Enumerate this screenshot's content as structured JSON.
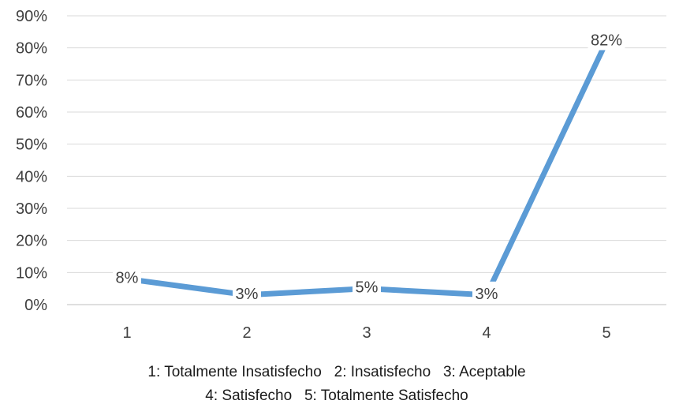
{
  "chart_data": {
    "type": "line",
    "categories": [
      "1",
      "2",
      "3",
      "4",
      "5"
    ],
    "series": [
      {
        "values": [
          8,
          3,
          5,
          3,
          82
        ],
        "labels": [
          "8%",
          "3%",
          "5%",
          "3%",
          "82%"
        ],
        "color": "#5B9BD5"
      }
    ],
    "y_ticks": [
      "0%",
      "10%",
      "20%",
      "30%",
      "40%",
      "50%",
      "60%",
      "70%",
      "80%",
      "90%"
    ],
    "ylim": [
      0,
      90
    ],
    "grid": true,
    "legend_lines": [
      "1: Totalmente Insatisfecho   2: Insatisfecho   3: Aceptable",
      "4: Satisfecho   5: Totalmente Satisfecho"
    ]
  }
}
